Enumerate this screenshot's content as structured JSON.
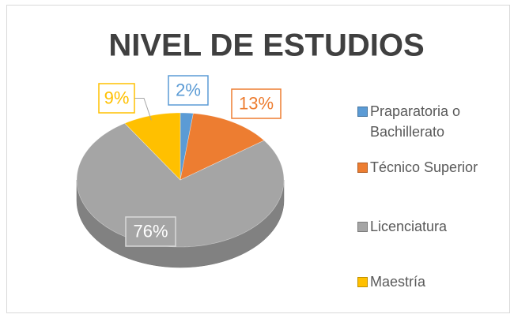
{
  "chart_data": {
    "type": "pie",
    "title": "NIVEL DE ESTUDIOS",
    "categories": [
      "Praparatoria o Bachillerato",
      "Técnico Superior",
      "Licenciatura",
      "Maestría"
    ],
    "values": [
      2,
      13,
      76,
      9
    ],
    "value_labels": [
      "2%",
      "13%",
      "76%",
      "9%"
    ],
    "colors": [
      "#5b9bd5",
      "#ed7d31",
      "#a5a5a5",
      "#ffc000"
    ],
    "legend": "right"
  }
}
